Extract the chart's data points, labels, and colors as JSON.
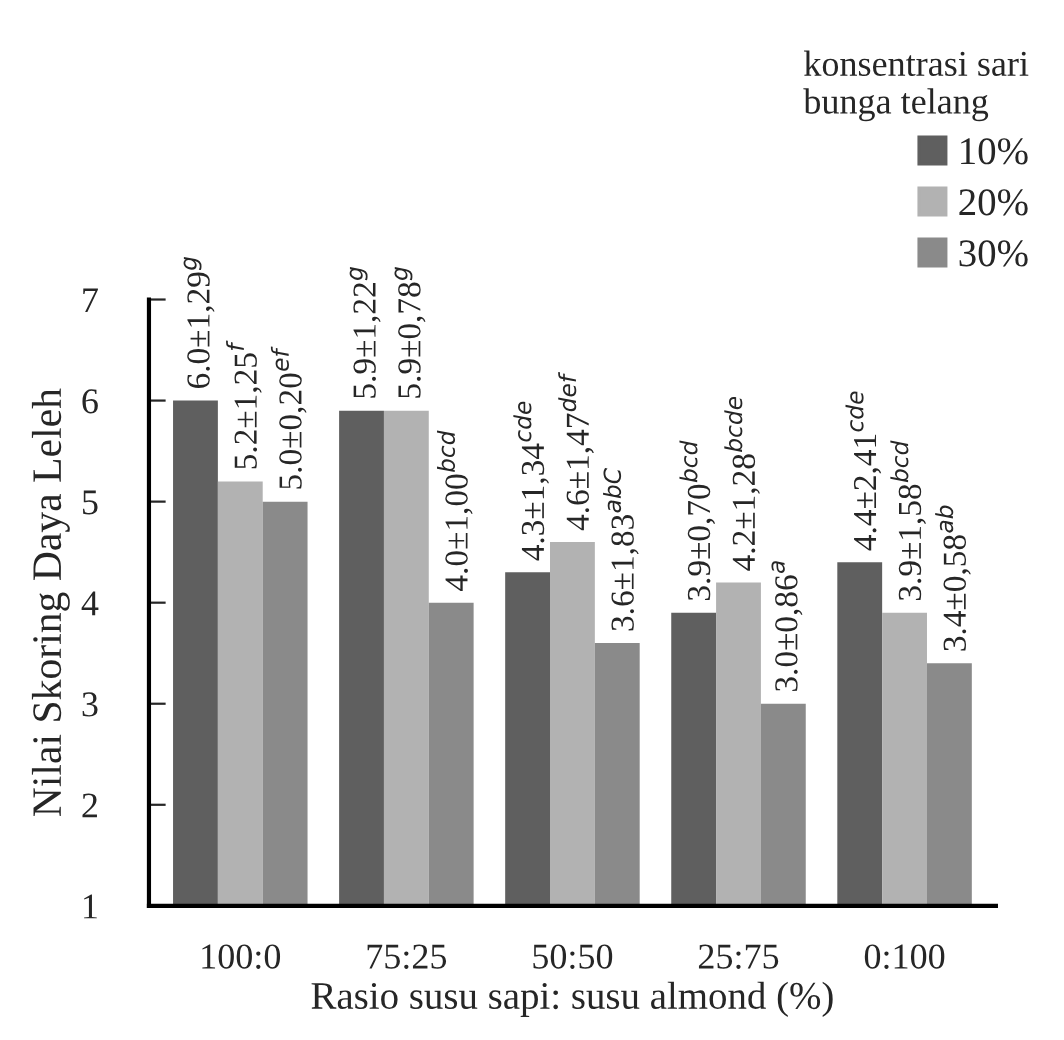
{
  "chart_data": {
    "type": "bar",
    "xlabel": "Rasio susu sapi: susu almond (%)",
    "ylabel": "Nilai Skoring Daya Leleh",
    "legend_title": "konsentrasi sari\nbunga telang",
    "categories": [
      "100:0",
      "75:25",
      "50:50",
      "25:75",
      "0:100"
    ],
    "series": [
      {
        "name": "10%",
        "color": "#5f5f5f",
        "values": [
          6.0,
          5.9,
          4.3,
          3.9,
          4.4
        ],
        "value_labels": [
          "6.0±1,29$^{g}$",
          "5.9±1,22$^{g}$",
          "4.3±1,34$^{cde}$",
          "3.9±0,70$^{bcd}$",
          "4.4±2,41$^{cde}$"
        ]
      },
      {
        "name": "20%",
        "color": "#b2b2b2",
        "values": [
          5.2,
          5.9,
          4.6,
          4.2,
          3.9
        ],
        "value_labels": [
          "5.2±1,25$^{f}$",
          "5.9±0,78$^{g}$",
          "4.6±1,47$^{def}$",
          "4.2±1,28$^{bcde}$",
          "3.9±1,58$^{bcd}$"
        ]
      },
      {
        "name": "30%",
        "color": "#8a8a8a",
        "values": [
          5.0,
          4.0,
          3.6,
          3.0,
          3.4
        ],
        "value_labels": [
          "5.0±0,20$^{ef}$",
          "4.0±1,00$^{bcd}$",
          "3.6±1,83$^{abC}$",
          "3.0±0,86$^{a}$",
          "3.4±0,58$^{ab}$"
        ]
      }
    ],
    "ylim": [
      1,
      7
    ],
    "yticks": [
      1,
      2,
      3,
      4,
      5,
      6,
      7
    ],
    "grid": false,
    "legend": "top right"
  }
}
